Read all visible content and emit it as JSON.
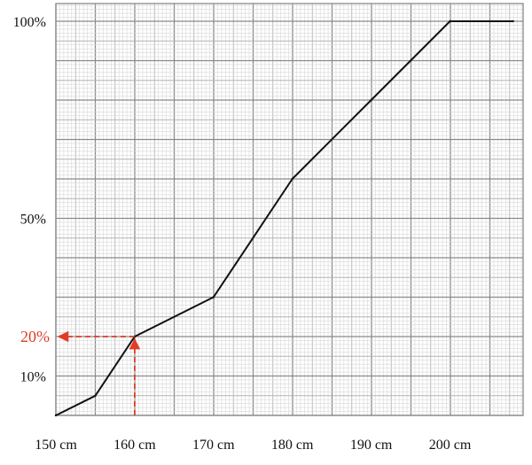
{
  "chart_data": {
    "type": "line",
    "x_ticks": [
      "150 cm",
      "160 cm",
      "170 cm",
      "180 cm",
      "190 cm",
      "200 cm"
    ],
    "x_tick_values": [
      150,
      160,
      170,
      180,
      190,
      200
    ],
    "y_ticks": [
      "10%",
      "50%",
      "100%"
    ],
    "y_tick_values": [
      10,
      50,
      100
    ],
    "xlim": [
      150,
      208
    ],
    "ylim": [
      0,
      100
    ],
    "grid": true,
    "series": [
      {
        "x": [
          150,
          155,
          160,
          170,
          180,
          190,
          200,
          208
        ],
        "y": [
          0,
          5,
          20,
          30,
          60,
          80,
          100,
          100
        ],
        "color": "#111111"
      }
    ],
    "annotation": {
      "label": "20%",
      "x": 160,
      "y": 20,
      "color": "#e03c28"
    }
  }
}
